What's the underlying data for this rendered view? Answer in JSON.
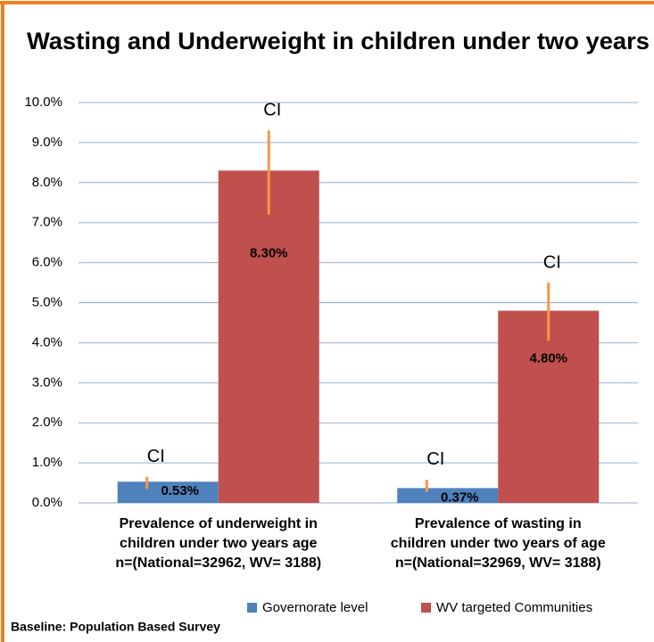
{
  "chart_data": {
    "type": "bar",
    "title": "Wasting and Underweight in children under two years",
    "categories": [
      [
        "Prevalence of underweight in",
        "children under two years age",
        "n=(National=32962, WV= 3188)"
      ],
      [
        "Prevalence of wasting in",
        "children under two years of age",
        "n=(National=32969, WV= 3188)"
      ]
    ],
    "series": [
      {
        "name": "Governorate level",
        "color": "#4f81bd",
        "values": [
          0.53,
          0.37
        ],
        "value_labels": [
          "0.53%",
          "0.37%"
        ],
        "ci": [
          [
            0.35,
            0.65
          ],
          [
            0.27,
            0.58
          ]
        ]
      },
      {
        "name": "WV targeted Communities",
        "color": "#c0504d",
        "values": [
          8.3,
          4.8
        ],
        "value_labels": [
          "8.30%",
          "4.80%"
        ],
        "ci": [
          [
            7.2,
            9.3
          ],
          [
            4.05,
            5.5
          ]
        ]
      }
    ],
    "error_label": "CI",
    "error_color": "#f79646",
    "ylim": [
      0,
      10
    ],
    "yticks": [
      {
        "value": 0,
        "label": "0.0%"
      },
      {
        "value": 1,
        "label": "1.0%"
      },
      {
        "value": 2,
        "label": "2.0%"
      },
      {
        "value": 3,
        "label": "3.0%"
      },
      {
        "value": 4,
        "label": "4.0%"
      },
      {
        "value": 5,
        "label": "5.0%"
      },
      {
        "value": 6,
        "label": "6.0%"
      },
      {
        "value": 7,
        "label": "7.0%"
      },
      {
        "value": 8,
        "label": "8.0%"
      },
      {
        "value": 9,
        "label": "9.0%"
      },
      {
        "value": 10,
        "label": "10.0%"
      }
    ],
    "grid": true,
    "legend": "bottom-right",
    "footnote": "Baseline: Population Based Survey"
  }
}
